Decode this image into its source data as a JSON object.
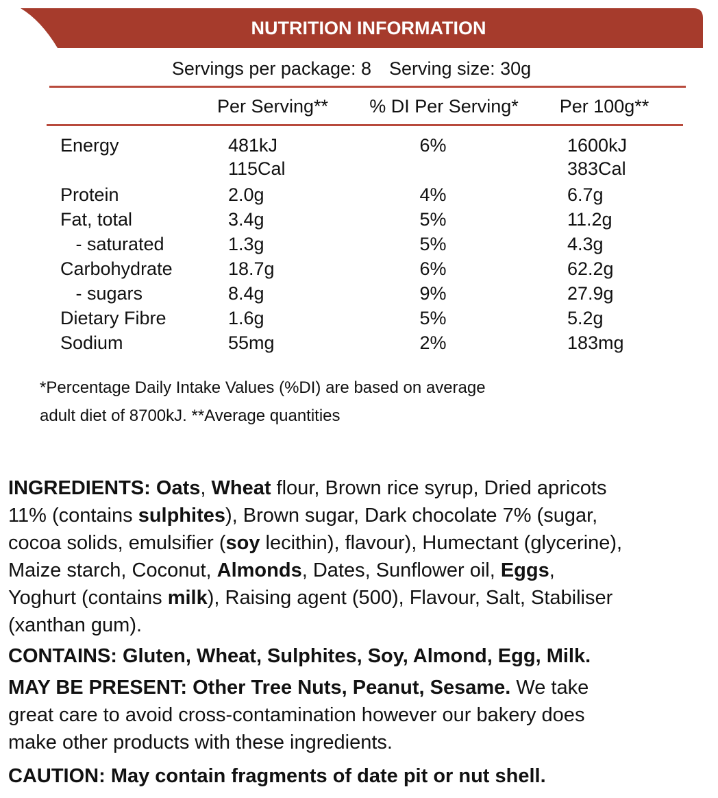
{
  "header": {
    "title": "NUTRITION INFORMATION",
    "servings": "Servings per package: 8",
    "serving_size": "Serving size: 30g"
  },
  "table": {
    "columns": [
      "Per Serving**",
      "% DI Per Serving*",
      "Per 100g**"
    ],
    "rows": [
      [
        "Energy",
        "481kJ",
        "6%",
        "1600kJ"
      ],
      [
        null,
        "115Cal",
        null,
        "383Cal"
      ],
      [
        "Protein",
        "2.0g",
        "4%",
        "6.7g"
      ],
      [
        "Fat, total",
        "3.4g",
        "5%",
        "11.2g"
      ],
      [
        "   - saturated",
        "1.3g",
        "5%",
        "4.3g"
      ],
      [
        "Carbohydrate",
        "18.7g",
        "6%",
        "62.2g"
      ],
      [
        "   - sugars",
        "8.4g",
        "9%",
        "27.9g"
      ],
      [
        "Dietary Fibre",
        "1.6g",
        "5%",
        "5.2g"
      ],
      [
        "Sodium",
        "55mg",
        "2%",
        "183mg"
      ]
    ]
  },
  "footnotes": [
    "*Percentage Daily Intake Values (%DI) are based on average",
    "adult diet of 8700kJ. **Average quantities"
  ],
  "paragraphs": [
    {
      "lines": [
        [
          {
            "text": "INGREDIENTS: Oats",
            "bold": true
          },
          {
            "text": ", ",
            "bold": false
          },
          {
            "text": "Wheat",
            "bold": true
          },
          {
            "text": " flour, Brown rice syrup, Dried apricots",
            "bold": false
          }
        ],
        [
          {
            "text": "11% (contains ",
            "bold": false
          },
          {
            "text": "sulphites",
            "bold": true
          },
          {
            "text": "), Brown sugar, Dark chocolate 7% (sugar,",
            "bold": false
          }
        ],
        [
          {
            "text": "cocoa solids, emulsifier (",
            "bold": false
          },
          {
            "text": "soy",
            "bold": true
          },
          {
            "text": " lecithin), flavour), Humectant (glycerine),",
            "bold": false
          }
        ],
        [
          {
            "text": "Maize starch, Coconut, ",
            "bold": false
          },
          {
            "text": "Almonds",
            "bold": true
          },
          {
            "text": ", Dates, Sunflower oil, ",
            "bold": false
          },
          {
            "text": "Eggs",
            "bold": true
          },
          {
            "text": ",",
            "bold": false
          }
        ],
        [
          {
            "text": "Yoghurt (contains ",
            "bold": false
          },
          {
            "text": "milk",
            "bold": true
          },
          {
            "text": "), Raising agent (500), Flavour, Salt, Stabiliser",
            "bold": false
          }
        ],
        [
          {
            "text": "(xanthan gum).",
            "bold": false
          }
        ]
      ]
    },
    {
      "lines": [
        [
          {
            "text": "CONTAINS: Gluten, Wheat, Sulphites, Soy, Almond, Egg, Milk.",
            "bold": true
          }
        ]
      ]
    },
    {
      "lines": [
        [
          {
            "text": "MAY BE PRESENT: Other Tree Nuts, Peanut, Sesame.",
            "bold": true
          },
          {
            "text": " We take",
            "bold": false
          }
        ],
        [
          {
            "text": "great care to avoid cross-contamination however our bakery does",
            "bold": false
          }
        ],
        [
          {
            "text": "make other products with these ingredients.",
            "bold": false
          }
        ]
      ]
    },
    {
      "lines": [
        [
          {
            "text": "CAUTION: May contain fragments of date pit or nut shell.",
            "bold": true
          }
        ]
      ]
    }
  ]
}
